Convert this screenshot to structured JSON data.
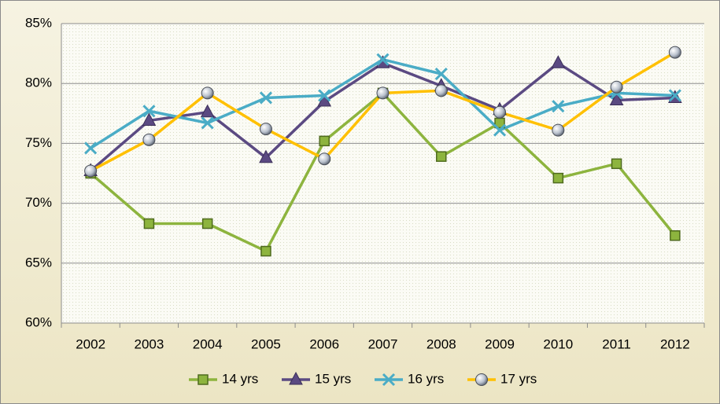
{
  "chart_data": {
    "type": "line",
    "categories": [
      "2002",
      "2003",
      "2004",
      "2005",
      "2006",
      "2007",
      "2008",
      "2009",
      "2010",
      "2011",
      "2012"
    ],
    "series": [
      {
        "name": "14 yrs",
        "color": "#8db43e",
        "marker": "square",
        "values": [
          72.5,
          68.3,
          68.3,
          66.0,
          75.2,
          79.2,
          73.9,
          76.7,
          72.1,
          73.3,
          67.3
        ]
      },
      {
        "name": "15 yrs",
        "color": "#5b4a82",
        "marker": "triangle",
        "values": [
          72.7,
          76.9,
          77.6,
          73.8,
          78.5,
          81.7,
          79.8,
          77.8,
          81.7,
          78.6,
          78.8
        ]
      },
      {
        "name": "16 yrs",
        "color": "#4aacc6",
        "marker": "x",
        "values": [
          74.6,
          77.7,
          76.7,
          78.8,
          79.0,
          82.0,
          80.8,
          76.1,
          78.1,
          79.2,
          79.0
        ]
      },
      {
        "name": "17 yrs",
        "color": "#ffc000",
        "marker": "circle",
        "values": [
          72.7,
          75.3,
          79.2,
          76.2,
          73.7,
          79.2,
          79.4,
          77.6,
          76.1,
          79.7,
          82.6
        ]
      }
    ],
    "ylim": [
      60,
      85
    ],
    "yticks": [
      {
        "value": 60,
        "label": "60%"
      },
      {
        "value": 65,
        "label": "65%"
      },
      {
        "value": 70,
        "label": "70%"
      },
      {
        "value": 75,
        "label": "75%"
      },
      {
        "value": 80,
        "label": "80%"
      },
      {
        "value": 85,
        "label": "85%"
      }
    ],
    "grid": true,
    "legend": "bottom"
  }
}
